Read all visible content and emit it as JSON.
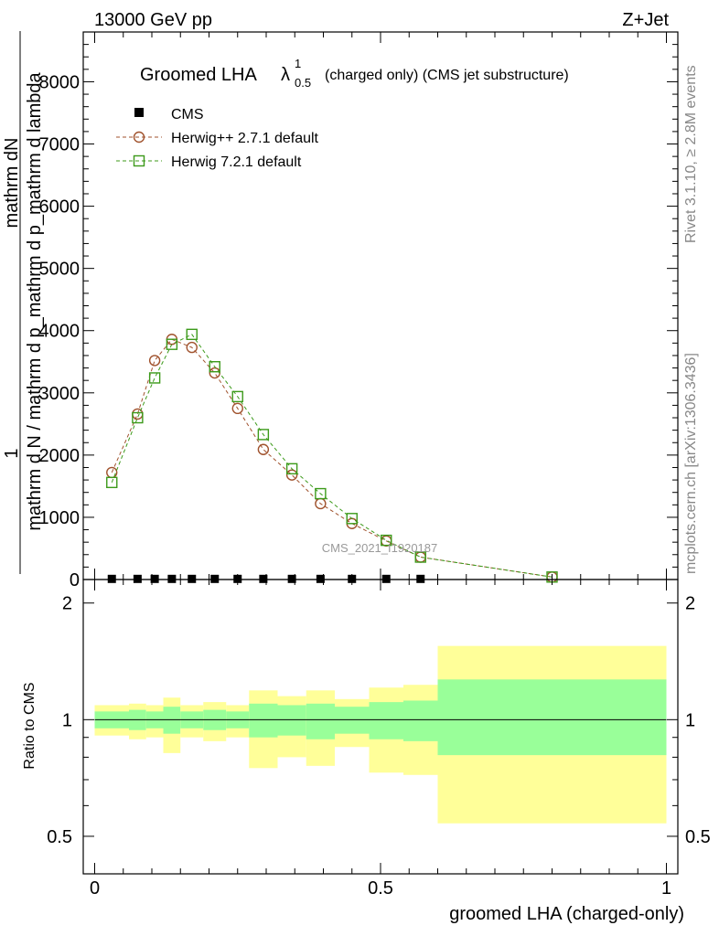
{
  "header": {
    "left": "13000 GeV pp",
    "right": "Z+Jet"
  },
  "side_labels": {
    "rivet": "Rivet 3.1.10, ≥ 2.8M events",
    "mcplots": "mcplots.cern.ch [arXiv:1306.3436]"
  },
  "watermark": "CMS_2021_I1920187",
  "chart_data": [
    {
      "type": "line",
      "title_main": "Groomed LHA",
      "title_symbol": "λ",
      "title_sup": "1",
      "title_sub": "0.5",
      "title_rest": "(charged only) (CMS jet substructure)",
      "ylabel_num_1": "1",
      "ylabel_num_2": "mathrm dN",
      "ylabel_den_1": "mathrm d N / mathrm d p_mathrm d p_mathrm d lambda",
      "ylabel_den_2": "mathrm d N / mathrm d mathrm d p_mathrm d lambda",
      "xlim": [
        -0.02,
        1.02
      ],
      "ylim": [
        0,
        8800
      ],
      "yticks": [
        0,
        1000,
        2000,
        3000,
        4000,
        5000,
        6000,
        7000,
        8000
      ],
      "ytick_labels": [
        "0",
        "1000",
        "2000",
        "3000",
        "4000",
        "5000",
        "6000",
        "7000",
        "8000"
      ],
      "legend_position": "top-left",
      "series": [
        {
          "name": "CMS",
          "color": "#000000",
          "marker": "square-filled",
          "x": [
            0.03,
            0.075,
            0.105,
            0.135,
            0.17,
            0.21,
            0.25,
            0.295,
            0.345,
            0.395,
            0.45,
            0.51,
            0.57
          ],
          "y": [
            10,
            10,
            10,
            10,
            10,
            10,
            10,
            10,
            10,
            10,
            10,
            10,
            10
          ]
        },
        {
          "name": "Herwig++ 2.7.1 default",
          "color": "#a0522d",
          "marker": "circle-open",
          "x": [
            0.03,
            0.075,
            0.105,
            0.135,
            0.17,
            0.21,
            0.25,
            0.295,
            0.345,
            0.395,
            0.45,
            0.51,
            0.57,
            0.8
          ],
          "y": [
            1720,
            2660,
            3520,
            3860,
            3730,
            3320,
            2750,
            2090,
            1680,
            1220,
            900,
            620,
            360,
            40
          ]
        },
        {
          "name": "Herwig 7.2.1 default",
          "color": "#3c9a1a",
          "marker": "square-open",
          "x": [
            0.03,
            0.075,
            0.105,
            0.135,
            0.17,
            0.21,
            0.25,
            0.295,
            0.345,
            0.395,
            0.45,
            0.51,
            0.57,
            0.8
          ],
          "y": [
            1560,
            2600,
            3240,
            3780,
            3940,
            3420,
            2940,
            2330,
            1780,
            1380,
            980,
            630,
            360,
            40
          ]
        }
      ]
    },
    {
      "type": "area",
      "ylabel": "Ratio to CMS",
      "xlabel": "groomed LHA (charged-only)",
      "xlim": [
        -0.02,
        1.02
      ],
      "ylim": [
        0.4,
        2.3
      ],
      "xticks": [
        0,
        0.5,
        1
      ],
      "xtick_labels": [
        "0",
        "0.5",
        "1"
      ],
      "yticks": [
        0.5,
        1,
        2
      ],
      "ytick_labels": [
        "0.5",
        "1",
        "2"
      ],
      "bins": [
        {
          "lo": 0.0,
          "hi": 0.06,
          "stat_lo": 0.95,
          "stat_hi": 1.05,
          "tot_lo": 0.91,
          "tot_hi": 1.09
        },
        {
          "lo": 0.06,
          "hi": 0.09,
          "stat_lo": 0.94,
          "stat_hi": 1.06,
          "tot_lo": 0.89,
          "tot_hi": 1.1
        },
        {
          "lo": 0.09,
          "hi": 0.12,
          "stat_lo": 0.95,
          "stat_hi": 1.05,
          "tot_lo": 0.9,
          "tot_hi": 1.09
        },
        {
          "lo": 0.12,
          "hi": 0.15,
          "stat_lo": 0.92,
          "stat_hi": 1.08,
          "tot_lo": 0.82,
          "tot_hi": 1.14
        },
        {
          "lo": 0.15,
          "hi": 0.19,
          "stat_lo": 0.95,
          "stat_hi": 1.05,
          "tot_lo": 0.9,
          "tot_hi": 1.09
        },
        {
          "lo": 0.19,
          "hi": 0.23,
          "stat_lo": 0.94,
          "stat_hi": 1.06,
          "tot_lo": 0.88,
          "tot_hi": 1.11
        },
        {
          "lo": 0.23,
          "hi": 0.27,
          "stat_lo": 0.95,
          "stat_hi": 1.05,
          "tot_lo": 0.9,
          "tot_hi": 1.09
        },
        {
          "lo": 0.27,
          "hi": 0.32,
          "stat_lo": 0.9,
          "stat_hi": 1.1,
          "tot_lo": 0.75,
          "tot_hi": 1.19
        },
        {
          "lo": 0.32,
          "hi": 0.37,
          "stat_lo": 0.91,
          "stat_hi": 1.09,
          "tot_lo": 0.8,
          "tot_hi": 1.15
        },
        {
          "lo": 0.37,
          "hi": 0.42,
          "stat_lo": 0.89,
          "stat_hi": 1.1,
          "tot_lo": 0.76,
          "tot_hi": 1.19
        },
        {
          "lo": 0.42,
          "hi": 0.48,
          "stat_lo": 0.92,
          "stat_hi": 1.08,
          "tot_lo": 0.85,
          "tot_hi": 1.13
        },
        {
          "lo": 0.48,
          "hi": 0.54,
          "stat_lo": 0.89,
          "stat_hi": 1.11,
          "tot_lo": 0.73,
          "tot_hi": 1.21
        },
        {
          "lo": 0.54,
          "hi": 0.6,
          "stat_lo": 0.88,
          "stat_hi": 1.12,
          "tot_lo": 0.72,
          "tot_hi": 1.23
        },
        {
          "lo": 0.6,
          "hi": 1.0,
          "stat_lo": 0.81,
          "stat_hi": 1.27,
          "tot_lo": 0.54,
          "tot_hi": 1.55
        }
      ],
      "colors": {
        "stat": "#99ff99",
        "total": "#ffff99"
      }
    }
  ]
}
